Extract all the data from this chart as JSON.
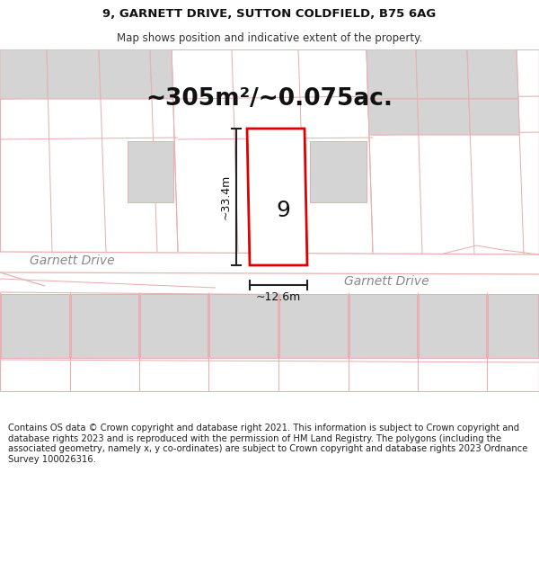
{
  "title_line1": "9, GARNETT DRIVE, SUTTON COLDFIELD, B75 6AG",
  "title_line2": "Map shows position and indicative extent of the property.",
  "area_text": "~305m²/~0.075ac.",
  "plot_number": "9",
  "dim_vertical": "~33.4m",
  "dim_horizontal": "~12.6m",
  "street_name_left": "Garnett Drive",
  "street_name_right": "Garnett Drive",
  "footer_text": "Contains OS data © Crown copyright and database right 2021. This information is subject to Crown copyright and database rights 2023 and is reproduced with the permission of HM Land Registry. The polygons (including the associated geometry, namely x, y co-ordinates) are subject to Crown copyright and database rights 2023 Ordnance Survey 100026316.",
  "plot_fill": "#ffffff",
  "plot_edge_color": "#dd0000",
  "building_fill": "#d4d4d4",
  "road_line_color": "#e8b0b0",
  "map_bg": "#f7f5f3",
  "title_fontsize": 9.5,
  "subtitle_fontsize": 8.5,
  "area_fontsize": 19,
  "plot_label_fontsize": 18,
  "street_fontsize": 10,
  "dim_fontsize": 9,
  "footer_fontsize": 7.2
}
